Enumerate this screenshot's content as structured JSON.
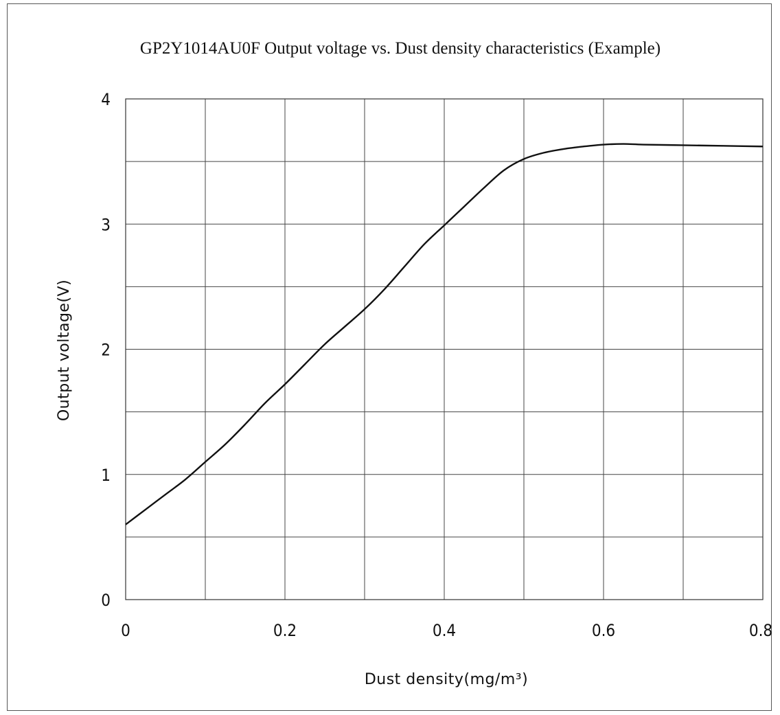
{
  "chart_data": {
    "type": "line",
    "title": "GP2Y1014AU0F Output voltage vs. Dust density characteristics (Example)",
    "xlabel": "Dust density(mg/m³)",
    "ylabel": "Output voltage(V)",
    "xlim": [
      0,
      0.8
    ],
    "ylim": [
      0,
      4
    ],
    "x_ticks": [
      0,
      0.2,
      0.4,
      0.6,
      0.8
    ],
    "x_tick_labels": [
      "0",
      "0.2",
      "0.4",
      "0.6",
      "0.8"
    ],
    "y_ticks": [
      0,
      1,
      2,
      3,
      4
    ],
    "y_tick_labels": [
      "0",
      "1",
      "2",
      "3",
      "4"
    ],
    "x_gridlines": [
      0.1,
      0.2,
      0.3,
      0.4,
      0.5,
      0.6,
      0.7
    ],
    "y_gridlines": [
      0.5,
      1,
      1.5,
      2,
      2.5,
      3,
      3.5
    ],
    "grid": true,
    "series": [
      {
        "x": [
          0,
          0.025,
          0.05,
          0.075,
          0.1,
          0.125,
          0.15,
          0.175,
          0.2,
          0.225,
          0.25,
          0.275,
          0.3,
          0.325,
          0.35,
          0.375,
          0.4,
          0.425,
          0.45,
          0.475,
          0.5,
          0.525,
          0.55,
          0.575,
          0.6,
          0.625,
          0.65,
          0.7,
          0.75,
          0.8
        ],
        "y": [
          0.6,
          0.72,
          0.84,
          0.96,
          1.1,
          1.24,
          1.4,
          1.57,
          1.72,
          1.88,
          2.04,
          2.18,
          2.32,
          2.48,
          2.66,
          2.84,
          2.99,
          3.14,
          3.29,
          3.43,
          3.52,
          3.57,
          3.6,
          3.62,
          3.635,
          3.64,
          3.635,
          3.63,
          3.625,
          3.62
        ],
        "color": "#111111"
      }
    ]
  }
}
